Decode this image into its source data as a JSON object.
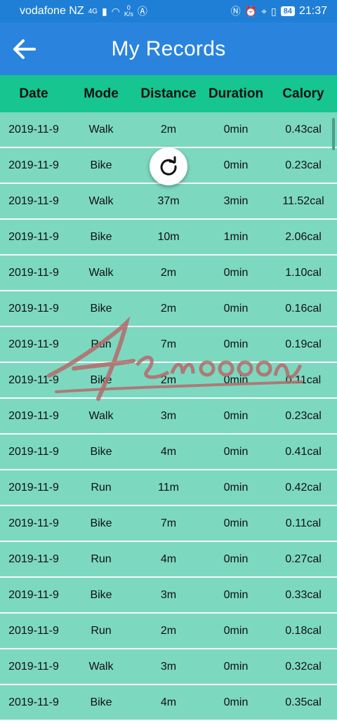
{
  "status_bar": {
    "carrier": "vodafone NZ",
    "network": "4G",
    "speed_value": "0",
    "speed_unit": "K/s",
    "battery": "84",
    "time": "21:37"
  },
  "app_bar": {
    "title": "My Records",
    "back_icon": "arrow-left-icon"
  },
  "table": {
    "headers": [
      "Date",
      "Mode",
      "Distance",
      "Duration",
      "Calory"
    ],
    "rows": [
      [
        "2019-11-9",
        "Walk",
        "2m",
        "0min",
        "0.43cal"
      ],
      [
        "2019-11-9",
        "Bike",
        "",
        "0min",
        "0.23cal"
      ],
      [
        "2019-11-9",
        "Walk",
        "37m",
        "3min",
        "11.52cal"
      ],
      [
        "2019-11-9",
        "Bike",
        "10m",
        "1min",
        "2.06cal"
      ],
      [
        "2019-11-9",
        "Walk",
        "2m",
        "0min",
        "1.10cal"
      ],
      [
        "2019-11-9",
        "Bike",
        "2m",
        "0min",
        "0.16cal"
      ],
      [
        "2019-11-9",
        "Run",
        "7m",
        "0min",
        "0.19cal"
      ],
      [
        "2019-11-9",
        "Bike",
        "2m",
        "0min",
        "0.11cal"
      ],
      [
        "2019-11-9",
        "Walk",
        "3m",
        "0min",
        "0.23cal"
      ],
      [
        "2019-11-9",
        "Bike",
        "4m",
        "0min",
        "0.41cal"
      ],
      [
        "2019-11-9",
        "Run",
        "11m",
        "0min",
        "0.42cal"
      ],
      [
        "2019-11-9",
        "Bike",
        "7m",
        "0min",
        "0.11cal"
      ],
      [
        "2019-11-9",
        "Run",
        "4m",
        "0min",
        "0.27cal"
      ],
      [
        "2019-11-9",
        "Bike",
        "3m",
        "0min",
        "0.33cal"
      ],
      [
        "2019-11-9",
        "Run",
        "2m",
        "0min",
        "0.18cal"
      ],
      [
        "2019-11-9",
        "Walk",
        "3m",
        "0min",
        "0.32cal"
      ],
      [
        "2019-11-9",
        "Bike",
        "4m",
        "0min",
        "0.35cal"
      ]
    ]
  },
  "refresh_icon": "refresh-icon",
  "watermark": "Aemoooooon",
  "colors": {
    "status_bar": "#1f7fd6",
    "app_bar": "#2a84de",
    "header": "#16c58f",
    "row": "#7dd8c0"
  }
}
